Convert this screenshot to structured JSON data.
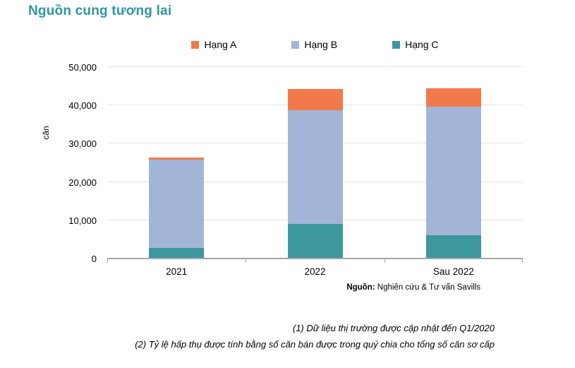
{
  "title": "Nguồn cung tương lai",
  "colors": {
    "title": "#2E96A3",
    "hang_a": "#F2794B",
    "hang_b": "#A3B5D7",
    "hang_c": "#3E979E",
    "gridline": "#E4E4E4",
    "axis": "#A6A6A6"
  },
  "chart_data": {
    "type": "bar",
    "stacked": true,
    "categories": [
      "2021",
      "2022",
      "Sau 2022"
    ],
    "series": [
      {
        "name": "Hạng A",
        "color": "#F2794B",
        "values": [
          500,
          5500,
          4900
        ]
      },
      {
        "name": "Hạng B",
        "color": "#A3B5D7",
        "values": [
          23200,
          29800,
          33500
        ]
      },
      {
        "name": "Hạng C",
        "color": "#3E979E",
        "values": [
          2500,
          8800,
          5900
        ]
      }
    ],
    "totals": [
      26200,
      44100,
      44300
    ],
    "xlabel": "",
    "ylabel": "căn",
    "ylim": [
      0,
      50000
    ],
    "ytick_step": 10000,
    "ytick_labels": [
      "0",
      "10,000",
      "20,000",
      "30,000",
      "40,000",
      "50,000"
    ],
    "grid": true,
    "legend_position": "top"
  },
  "source": {
    "label": "Nguồn:",
    "text": " Nghiên cứu & Tư vấn Savills"
  },
  "footnotes": [
    "(1) Dữ liệu thị trường được cập nhật đến Q1/2020",
    "(2) Tỷ lệ hấp thụ được tính bằng số căn bán được trong quý chia cho tổng số căn sơ cấp"
  ]
}
